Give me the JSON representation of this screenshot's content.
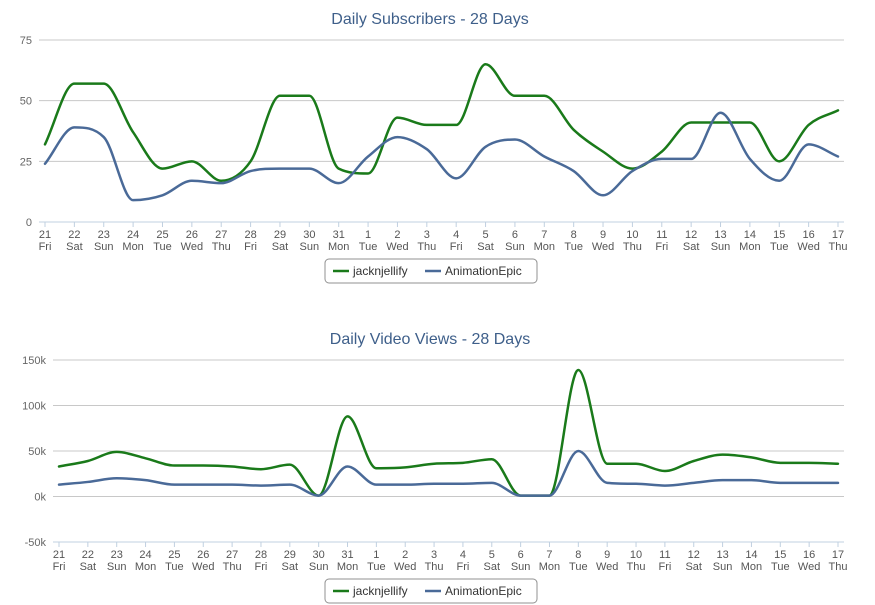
{
  "colors": {
    "jacknjellify": "#1a7a1a",
    "AnimationEpic": "#4a6a98",
    "title": "#3e5f8a"
  },
  "chart_data": [
    {
      "type": "line",
      "title": "Daily Subscribers - 28 Days",
      "xlabel": "",
      "ylabel": "",
      "ylim": [
        0,
        75
      ],
      "yticks": [
        0,
        25,
        50,
        75
      ],
      "ytick_labels": [
        "0",
        "25",
        "50",
        "75"
      ],
      "grid": true,
      "legend": "bottom-center",
      "categories": [
        "21",
        "22",
        "23",
        "24",
        "25",
        "26",
        "27",
        "28",
        "29",
        "30",
        "31",
        "1",
        "2",
        "3",
        "4",
        "5",
        "6",
        "7",
        "8",
        "9",
        "10",
        "11",
        "12",
        "13",
        "14",
        "15",
        "16",
        "17"
      ],
      "category_days": [
        "Fri",
        "Sat",
        "Sun",
        "Mon",
        "Tue",
        "Wed",
        "Thu",
        "Fri",
        "Sat",
        "Sun",
        "Mon",
        "Tue",
        "Wed",
        "Thu",
        "Fri",
        "Sat",
        "Sun",
        "Mon",
        "Tue",
        "Wed",
        "Thu",
        "Fri",
        "Sat",
        "Sun",
        "Mon",
        "Tue",
        "Wed",
        "Thu"
      ],
      "series": [
        {
          "name": "jacknjellify",
          "color": "#1a7a1a",
          "values": [
            32,
            57,
            57,
            37,
            22,
            25,
            17,
            25,
            52,
            52,
            22,
            20,
            43,
            40,
            40,
            65,
            52,
            52,
            38,
            29,
            22,
            29,
            41,
            41,
            41,
            25,
            40,
            46
          ]
        },
        {
          "name": "AnimationEpic",
          "color": "#4a6a98",
          "values": [
            24,
            39,
            35,
            9,
            11,
            17,
            16,
            21,
            22,
            22,
            16,
            27,
            35,
            30,
            18,
            31,
            34,
            27,
            21,
            11,
            21,
            26,
            26,
            45,
            26,
            17,
            32,
            27
          ]
        }
      ]
    },
    {
      "type": "line",
      "title": "Daily Video Views - 28 Days",
      "xlabel": "",
      "ylabel": "",
      "ylim": [
        -50000,
        150000
      ],
      "yticks": [
        -50000,
        0,
        50000,
        100000,
        150000
      ],
      "ytick_labels": [
        "-50k",
        "0k",
        "50k",
        "100k",
        "150k"
      ],
      "grid": true,
      "legend": "bottom-center",
      "categories": [
        "21",
        "22",
        "23",
        "24",
        "25",
        "26",
        "27",
        "28",
        "29",
        "30",
        "31",
        "1",
        "2",
        "3",
        "4",
        "5",
        "6",
        "7",
        "8",
        "9",
        "10",
        "11",
        "12",
        "13",
        "14",
        "15",
        "16",
        "17"
      ],
      "category_days": [
        "Fri",
        "Sat",
        "Sun",
        "Mon",
        "Tue",
        "Wed",
        "Thu",
        "Fri",
        "Sat",
        "Sun",
        "Mon",
        "Tue",
        "Wed",
        "Thu",
        "Fri",
        "Sat",
        "Sun",
        "Mon",
        "Tue",
        "Wed",
        "Thu",
        "Fri",
        "Sat",
        "Sun",
        "Mon",
        "Tue",
        "Wed",
        "Thu"
      ],
      "series": [
        {
          "name": "jacknjellify",
          "color": "#1a7a1a",
          "values": [
            33000,
            39000,
            49000,
            42000,
            34000,
            34000,
            33000,
            30000,
            35000,
            1000,
            88000,
            31000,
            32000,
            36000,
            37000,
            41000,
            1000,
            1000,
            139000,
            36000,
            36000,
            28000,
            39000,
            46000,
            43000,
            37000,
            37000,
            36000
          ]
        },
        {
          "name": "AnimationEpic",
          "color": "#4a6a98",
          "values": [
            13000,
            16000,
            20000,
            18000,
            13000,
            13000,
            13000,
            12000,
            13000,
            1000,
            33000,
            13000,
            13000,
            14000,
            14000,
            15000,
            1000,
            1000,
            50000,
            15000,
            14000,
            12000,
            15000,
            18000,
            18000,
            15000,
            15000,
            15000
          ]
        }
      ]
    }
  ]
}
